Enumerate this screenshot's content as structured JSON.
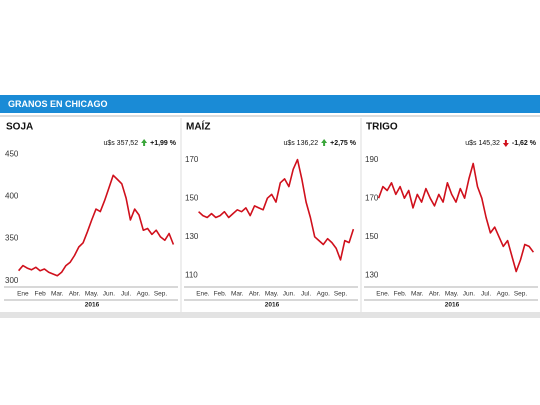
{
  "header": "GRANOS EN CHICAGO",
  "chart_data": [
    {
      "type": "line",
      "title": "SOJA",
      "price": "u$s 357,52",
      "change": "+1,99 %",
      "arrow_color": "#3aa63a",
      "xlabel": "2016",
      "xlim": [
        0.6,
        9.9
      ],
      "xticks": [
        {
          "value": 1,
          "label": "Ene"
        },
        {
          "value": 2,
          "label": "Feb"
        },
        {
          "value": 3,
          "label": "Mar."
        },
        {
          "value": 4,
          "label": "Abr."
        },
        {
          "value": 5,
          "label": "May."
        },
        {
          "value": 6,
          "label": "Jun."
        },
        {
          "value": 7,
          "label": "Jul."
        },
        {
          "value": 8,
          "label": "Ago."
        },
        {
          "value": 9,
          "label": "Sep."
        }
      ],
      "ylim": [
        295,
        455
      ],
      "yticks": [
        300,
        350,
        400,
        450
      ],
      "x": [
        0.75,
        1,
        1.25,
        1.5,
        1.75,
        2,
        2.25,
        2.5,
        2.75,
        3,
        3.25,
        3.5,
        3.75,
        4,
        4.25,
        4.5,
        4.75,
        5,
        5.25,
        5.5,
        5.75,
        6,
        6.25,
        6.5,
        6.75,
        7,
        7.25,
        7.5,
        7.75,
        8,
        8.25,
        8.5,
        8.75,
        9,
        9.25,
        9.5,
        9.75
      ],
      "series": [
        {
          "color": "#d0101c",
          "values": [
            312,
            318,
            315,
            313,
            316,
            312,
            314,
            310,
            308,
            306,
            310,
            318,
            322,
            330,
            340,
            345,
            358,
            372,
            385,
            382,
            395,
            410,
            425,
            420,
            415,
            398,
            372,
            385,
            378,
            360,
            362,
            355,
            360,
            352,
            348,
            356,
            343
          ]
        }
      ]
    },
    {
      "type": "line",
      "title": "MAÍZ",
      "price": "u$s 136,22",
      "change": "+2,75 %",
      "arrow_color": "#3aa63a",
      "xlabel": "2016",
      "xlim": [
        0.6,
        9.9
      ],
      "xticks": [
        {
          "value": 1,
          "label": "Ene."
        },
        {
          "value": 2,
          "label": "Feb."
        },
        {
          "value": 3,
          "label": "Mar."
        },
        {
          "value": 4,
          "label": "Abr."
        },
        {
          "value": 5,
          "label": "May."
        },
        {
          "value": 6,
          "label": "Jun."
        },
        {
          "value": 7,
          "label": "Jul."
        },
        {
          "value": 8,
          "label": "Ago."
        },
        {
          "value": 9,
          "label": "Sep."
        }
      ],
      "ylim": [
        105,
        175
      ],
      "yticks": [
        110,
        130,
        150,
        170
      ],
      "x": [
        0.75,
        1,
        1.25,
        1.5,
        1.75,
        2,
        2.25,
        2.5,
        2.75,
        3,
        3.25,
        3.5,
        3.75,
        4,
        4.25,
        4.5,
        4.75,
        5,
        5.25,
        5.5,
        5.75,
        6,
        6.25,
        6.5,
        6.75,
        7,
        7.25,
        7.5,
        7.75,
        8,
        8.25,
        8.5,
        8.75,
        9,
        9.25,
        9.5,
        9.75
      ],
      "series": [
        {
          "color": "#d0101c",
          "values": [
            143,
            141,
            140,
            142,
            140,
            141,
            143,
            140,
            142,
            144,
            143,
            145,
            141,
            146,
            145,
            144,
            150,
            152,
            148,
            158,
            160,
            156,
            165,
            170,
            160,
            148,
            140,
            130,
            128,
            126,
            129,
            127,
            124,
            118,
            128,
            127,
            134
          ]
        }
      ]
    },
    {
      "type": "line",
      "title": "TRIGO",
      "price": "u$s 145,32",
      "change": "-1,62 %",
      "arrow_color": "#d0101c",
      "xlabel": "2016",
      "xlim": [
        0.6,
        9.9
      ],
      "xticks": [
        {
          "value": 1,
          "label": "Ene."
        },
        {
          "value": 2,
          "label": "Feb."
        },
        {
          "value": 3,
          "label": "Mar."
        },
        {
          "value": 4,
          "label": "Abr."
        },
        {
          "value": 5,
          "label": "May."
        },
        {
          "value": 6,
          "label": "Jun."
        },
        {
          "value": 7,
          "label": "Jul."
        },
        {
          "value": 8,
          "label": "Ago."
        },
        {
          "value": 9,
          "label": "Sep."
        }
      ],
      "ylim": [
        125,
        195
      ],
      "yticks": [
        130,
        150,
        170,
        190
      ],
      "x": [
        0.75,
        1,
        1.25,
        1.5,
        1.75,
        2,
        2.25,
        2.5,
        2.75,
        3,
        3.25,
        3.5,
        3.75,
        4,
        4.25,
        4.5,
        4.75,
        5,
        5.25,
        5.5,
        5.75,
        6,
        6.25,
        6.5,
        6.75,
        7,
        7.25,
        7.5,
        7.75,
        8,
        8.25,
        8.5,
        8.75,
        9,
        9.25,
        9.5,
        9.75
      ],
      "series": [
        {
          "color": "#d0101c",
          "values": [
            170,
            176,
            174,
            178,
            172,
            176,
            170,
            174,
            165,
            172,
            168,
            175,
            170,
            166,
            172,
            168,
            178,
            172,
            168,
            175,
            170,
            180,
            188,
            176,
            170,
            160,
            152,
            155,
            150,
            145,
            148,
            140,
            132,
            138,
            146,
            145,
            142
          ]
        }
      ]
    }
  ]
}
